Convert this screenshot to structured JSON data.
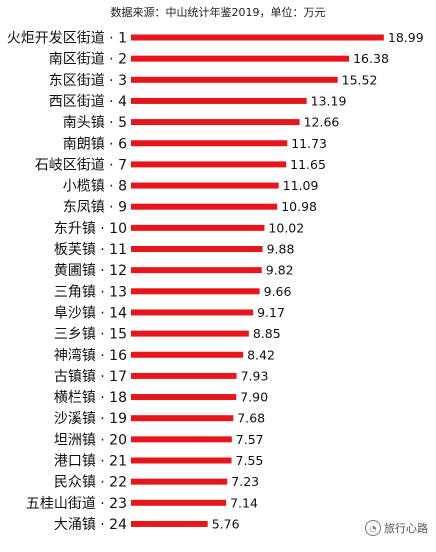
{
  "source_note": "数据来源：中山统计年鉴2019，单位：万元",
  "watermark": "旅行心路",
  "chart_data": {
    "type": "bar",
    "orientation": "horizontal",
    "title": "",
    "xlabel": "",
    "ylabel": "",
    "bar_color": "#e8151b",
    "xlim": [
      0,
      19.6
    ],
    "categories": [
      "火炬开发区街道 · 1",
      "南区街道 · 2",
      "东区街道 · 3",
      "西区街道 · 4",
      "南头镇 · 5",
      "南朗镇 · 6",
      "石岐区街道 · 7",
      "小榄镇 · 8",
      "东凤镇 · 9",
      "东升镇 · 10",
      "板芙镇 · 11",
      "黄圃镇 · 12",
      "三角镇 · 13",
      "阜沙镇 · 14",
      "三乡镇 · 15",
      "神湾镇 · 16",
      "古镇镇 · 17",
      "横栏镇 · 18",
      "沙溪镇 · 19",
      "坦洲镇 · 20",
      "港口镇 · 21",
      "民众镇 · 22",
      "五桂山街道 · 23",
      "大涌镇 · 24"
    ],
    "values": [
      18.99,
      16.38,
      15.52,
      13.19,
      12.66,
      11.73,
      11.65,
      11.09,
      10.98,
      10.02,
      9.88,
      9.82,
      9.66,
      9.17,
      8.85,
      8.42,
      7.93,
      7.9,
      7.68,
      7.57,
      7.55,
      7.23,
      7.14,
      5.76
    ],
    "value_labels": [
      "18.99",
      "16.38",
      "15.52",
      "13.19",
      "12.66",
      "11.73",
      "11.65",
      "11.09",
      "10.98",
      "10.02",
      "9.88",
      "9.82",
      "9.66",
      "9.17",
      "8.85",
      "8.42",
      "7.93",
      "7.90",
      "7.68",
      "7.57",
      "7.55",
      "7.23",
      "7.14",
      "5.76"
    ]
  }
}
